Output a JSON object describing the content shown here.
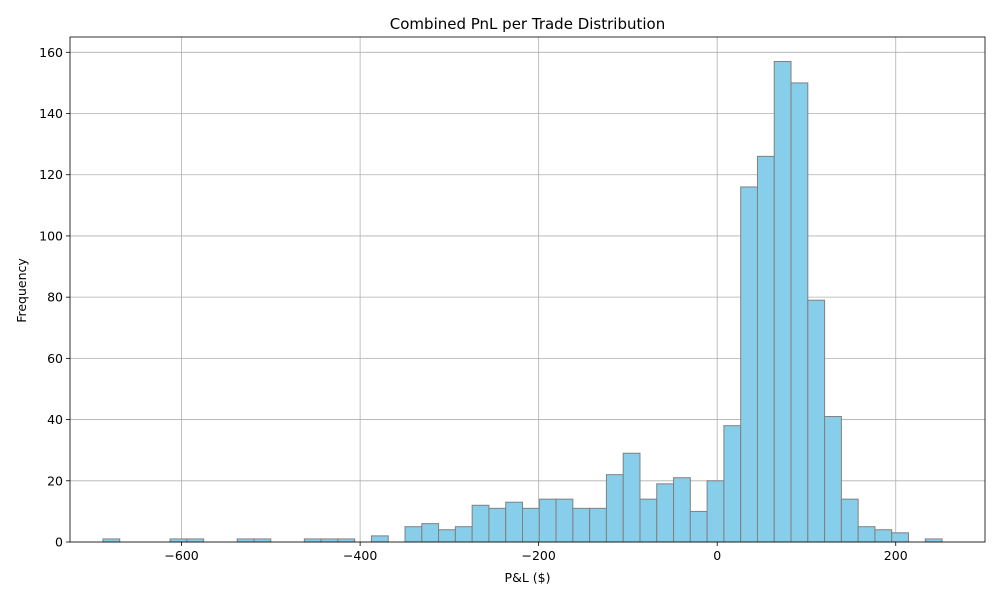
{
  "chart_data": {
    "type": "bar",
    "title": "Combined PnL per Trade Distribution",
    "xlabel": "P&L ($)",
    "ylabel": "Frequency",
    "xlim": [
      -725,
      300
    ],
    "ylim": [
      0,
      165
    ],
    "xticks": [
      -600,
      -400,
      -200,
      0,
      200
    ],
    "xtick_labels": [
      "−600",
      "−400",
      "−200",
      "0",
      "200"
    ],
    "yticks": [
      0,
      20,
      40,
      60,
      80,
      100,
      120,
      140,
      160
    ],
    "ytick_labels": [
      "0",
      "20",
      "40",
      "60",
      "80",
      "100",
      "120",
      "140",
      "160"
    ],
    "grid": true,
    "bar_color": "#87ceeb",
    "edge_color": "#808080",
    "grid_color": "#b0b0b0",
    "bins": [
      {
        "x0": -688.1,
        "x1": -669.3,
        "value": 1
      },
      {
        "x0": -612.9,
        "x1": -594.1,
        "value": 1
      },
      {
        "x0": -594.1,
        "x1": -575.3,
        "value": 1
      },
      {
        "x0": -537.7,
        "x1": -518.9,
        "value": 1
      },
      {
        "x0": -518.9,
        "x1": -500.1,
        "value": 1
      },
      {
        "x0": -462.5,
        "x1": -443.7,
        "value": 1
      },
      {
        "x0": -443.7,
        "x1": -424.9,
        "value": 1
      },
      {
        "x0": -424.9,
        "x1": -406.1,
        "value": 1
      },
      {
        "x0": -387.3,
        "x1": -368.5,
        "value": 2
      },
      {
        "x0": -349.7,
        "x1": -330.9,
        "value": 5
      },
      {
        "x0": -330.9,
        "x1": -312.1,
        "value": 6
      },
      {
        "x0": -312.1,
        "x1": -293.3,
        "value": 4
      },
      {
        "x0": -293.3,
        "x1": -274.5,
        "value": 5
      },
      {
        "x0": -274.5,
        "x1": -255.7,
        "value": 12
      },
      {
        "x0": -255.7,
        "x1": -236.9,
        "value": 11
      },
      {
        "x0": -236.9,
        "x1": -218.1,
        "value": 13
      },
      {
        "x0": -218.1,
        "x1": -199.3,
        "value": 11
      },
      {
        "x0": -199.3,
        "x1": -180.5,
        "value": 14
      },
      {
        "x0": -180.5,
        "x1": -161.7,
        "value": 14
      },
      {
        "x0": -161.7,
        "x1": -142.9,
        "value": 11
      },
      {
        "x0": -142.9,
        "x1": -124.1,
        "value": 11
      },
      {
        "x0": -124.1,
        "x1": -105.3,
        "value": 22
      },
      {
        "x0": -105.3,
        "x1": -86.5,
        "value": 29
      },
      {
        "x0": -86.5,
        "x1": -67.7,
        "value": 14
      },
      {
        "x0": -67.7,
        "x1": -48.9,
        "value": 19
      },
      {
        "x0": -48.9,
        "x1": -30.1,
        "value": 21
      },
      {
        "x0": -30.1,
        "x1": -11.3,
        "value": 10
      },
      {
        "x0": -11.3,
        "x1": 7.5,
        "value": 20
      },
      {
        "x0": 7.5,
        "x1": 26.3,
        "value": 38
      },
      {
        "x0": 26.3,
        "x1": 45.1,
        "value": 116
      },
      {
        "x0": 45.1,
        "x1": 63.9,
        "value": 126
      },
      {
        "x0": 63.9,
        "x1": 82.7,
        "value": 157
      },
      {
        "x0": 82.7,
        "x1": 101.5,
        "value": 150
      },
      {
        "x0": 101.5,
        "x1": 120.3,
        "value": 79
      },
      {
        "x0": 120.3,
        "x1": 139.1,
        "value": 41
      },
      {
        "x0": 139.1,
        "x1": 157.9,
        "value": 14
      },
      {
        "x0": 157.9,
        "x1": 176.7,
        "value": 5
      },
      {
        "x0": 176.7,
        "x1": 195.5,
        "value": 4
      },
      {
        "x0": 195.5,
        "x1": 214.3,
        "value": 3
      },
      {
        "x0": 233.1,
        "x1": 251.9,
        "value": 1
      }
    ]
  }
}
